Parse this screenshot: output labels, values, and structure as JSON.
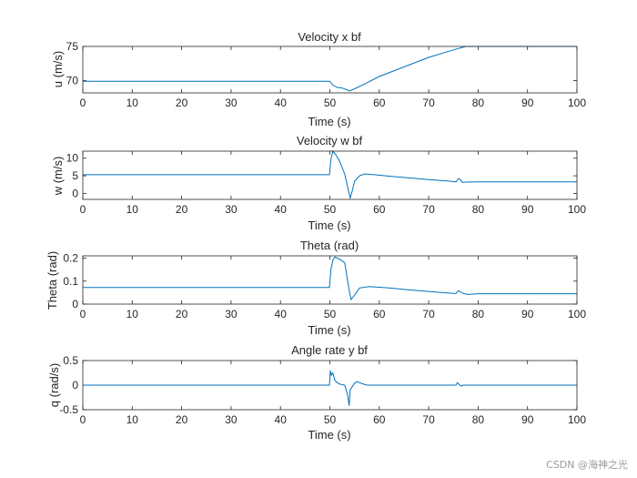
{
  "chart_data": [
    {
      "type": "line",
      "title": "Velocity x bf",
      "xlabel": "Time (s)",
      "ylabel": "u (m/s)",
      "xlim": [
        0,
        100
      ],
      "ylim": [
        68.2,
        75
      ],
      "xticks": [
        "0",
        "10",
        "20",
        "30",
        "40",
        "50",
        "60",
        "70",
        "80",
        "90",
        "100"
      ],
      "yticks": [
        {
          "value": 70,
          "label": "70"
        },
        {
          "value": 75,
          "label": "75"
        }
      ],
      "color": "#0072BD",
      "series": [
        {
          "name": "u",
          "x": [
            0,
            50,
            50.5,
            51.5,
            52.5,
            54,
            55,
            57,
            60,
            65,
            70,
            75,
            77.5,
            100
          ],
          "y": [
            69.9,
            69.9,
            69.4,
            69.0,
            68.9,
            68.5,
            68.8,
            69.5,
            70.6,
            72.0,
            73.4,
            74.5,
            75.0,
            75.0
          ]
        }
      ]
    },
    {
      "type": "line",
      "title": "Velocity w bf",
      "xlabel": "Time (s)",
      "ylabel": "w (m/s)",
      "xlim": [
        0,
        100
      ],
      "ylim": [
        -1.7,
        12
      ],
      "xticks": [
        "0",
        "10",
        "20",
        "30",
        "40",
        "50",
        "60",
        "70",
        "80",
        "90",
        "100"
      ],
      "yticks": [
        {
          "value": 0,
          "label": "0"
        },
        {
          "value": 5,
          "label": "5"
        },
        {
          "value": 10,
          "label": "10"
        }
      ],
      "color": "#0072BD",
      "series": [
        {
          "name": "w",
          "x": [
            0,
            49.9,
            50.2,
            50.6,
            51.2,
            52,
            53,
            53.8,
            54.1,
            54.5,
            55,
            56,
            57,
            59,
            62,
            66,
            70,
            74,
            75.5,
            76,
            76.4,
            76.8,
            77.5,
            80,
            85,
            90,
            95,
            100
          ],
          "y": [
            5.3,
            5.3,
            9.5,
            12.0,
            11.0,
            9.0,
            5.5,
            0.5,
            -1.3,
            0.5,
            3.5,
            5.0,
            5.5,
            5.3,
            4.9,
            4.4,
            3.9,
            3.5,
            3.3,
            4.2,
            3.9,
            3.1,
            3.2,
            3.3,
            3.3,
            3.3,
            3.3,
            3.3
          ]
        }
      ]
    },
    {
      "type": "line",
      "title": "Theta (rad)",
      "xlabel": "Time (s)",
      "ylabel": "Theta (rad)",
      "xlim": [
        0,
        100
      ],
      "ylim": [
        0,
        0.21
      ],
      "xticks": [
        "0",
        "10",
        "20",
        "30",
        "40",
        "50",
        "60",
        "70",
        "80",
        "90",
        "100"
      ],
      "yticks": [
        {
          "value": 0,
          "label": "0"
        },
        {
          "value": 0.1,
          "label": "0.1"
        },
        {
          "value": 0.2,
          "label": "0.2"
        }
      ],
      "color": "#0072BD",
      "series": [
        {
          "name": "theta",
          "x": [
            0,
            49.9,
            50.2,
            50.6,
            51,
            52,
            53,
            53.9,
            54.3,
            55,
            56,
            58,
            62,
            66,
            70,
            74,
            75.5,
            76,
            76.3,
            77,
            78,
            80,
            85,
            90,
            95,
            100
          ],
          "y": [
            0.072,
            0.072,
            0.15,
            0.19,
            0.205,
            0.195,
            0.18,
            0.06,
            0.02,
            0.04,
            0.07,
            0.076,
            0.07,
            0.062,
            0.055,
            0.048,
            0.046,
            0.058,
            0.055,
            0.046,
            0.042,
            0.045,
            0.045,
            0.045,
            0.045,
            0.045
          ]
        }
      ]
    },
    {
      "type": "line",
      "title": "Angle rate y bf",
      "xlabel": "Time (s)",
      "ylabel": "q (rad/s)",
      "xlim": [
        0,
        100
      ],
      "ylim": [
        -0.5,
        0.5
      ],
      "xticks": [
        "0",
        "10",
        "20",
        "30",
        "40",
        "50",
        "60",
        "70",
        "80",
        "90",
        "100"
      ],
      "yticks": [
        {
          "value": -0.5,
          "label": "-0.5"
        },
        {
          "value": 0,
          "label": "0"
        },
        {
          "value": 0.5,
          "label": "0.5"
        }
      ],
      "color": "#0072BD",
      "series": [
        {
          "name": "q",
          "x": [
            0,
            49.9,
            50.1,
            50.3,
            50.6,
            51,
            51.5,
            52,
            53,
            53.6,
            53.9,
            54.1,
            54.4,
            55,
            55.5,
            56.5,
            57.5,
            60,
            75.5,
            75.8,
            76.1,
            76.6,
            77,
            100
          ],
          "y": [
            0,
            0,
            0.3,
            0.2,
            0.25,
            0.1,
            0.05,
            0.02,
            0.0,
            -0.2,
            -0.42,
            -0.1,
            -0.05,
            0.04,
            0.07,
            0.03,
            0.0,
            0.0,
            0.0,
            0.05,
            0.02,
            -0.02,
            0.0,
            0.0
          ]
        }
      ]
    }
  ],
  "watermark": "CSDN @海神之光"
}
